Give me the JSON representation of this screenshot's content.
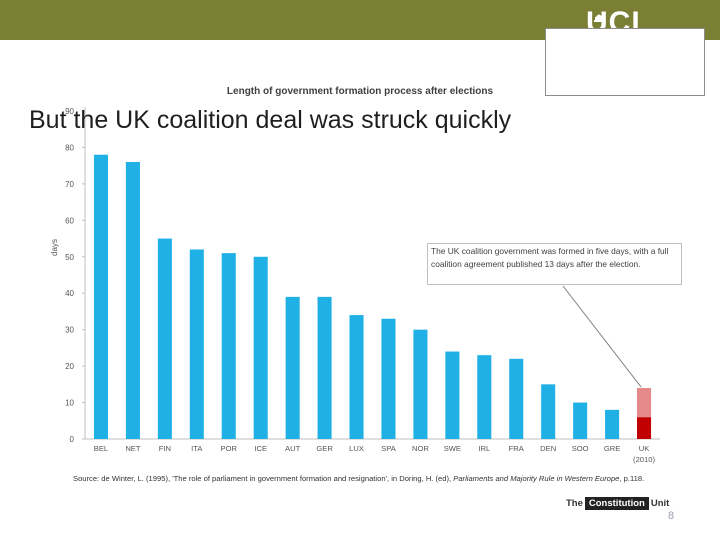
{
  "slide": {
    "title": "But the UK coalition deal was struck quickly",
    "page_number": "8",
    "logo_text": "UCL"
  },
  "chart_data": {
    "type": "bar",
    "title": "Length of government formation process after elections",
    "xlabel": "",
    "ylabel": "days",
    "ylim": [
      0,
      90
    ],
    "yticks": [
      0,
      10,
      20,
      30,
      40,
      50,
      60,
      70,
      80,
      90
    ],
    "grid": false,
    "categories": [
      "BEL",
      "NET",
      "FIN",
      "ITA",
      "POR",
      "ICE",
      "AUT",
      "GER",
      "LUX",
      "SPA",
      "NOR",
      "SWE",
      "IRL",
      "FRA",
      "DEN",
      "SOO",
      "GRE",
      "UK"
    ],
    "last_category_sublabel": "(2010)",
    "values": [
      78,
      76,
      55,
      52,
      51,
      50,
      39,
      39,
      34,
      33,
      30,
      24,
      23,
      22,
      15,
      10,
      8,
      14
    ],
    "highlight": {
      "category": "UK",
      "total": 14,
      "segments": [
        {
          "value": 6,
          "color": "#c00000"
        },
        {
          "value": 8,
          "color": "#e58a8a"
        }
      ]
    },
    "colors": {
      "bar": "#1fb0e6",
      "axis": "#bfbfbf",
      "tick_text": "#555555"
    },
    "annotation": "The UK coalition government was formed in five days, with a full coalition agreement published 13 days after the election."
  },
  "footer": {
    "source_prefix": "Source: de Winter, L. (1995), 'The role of parliament in government formation and resignation', in Doring, H. (ed), ",
    "source_book": "Parliaments and Majority Rule in Western Europe",
    "source_suffix": ", p.118.",
    "unit_logo_left": "The",
    "unit_logo_mid": "Constitution",
    "unit_logo_right": "Unit"
  },
  "colors": {
    "topbar": "#7a7f34"
  }
}
